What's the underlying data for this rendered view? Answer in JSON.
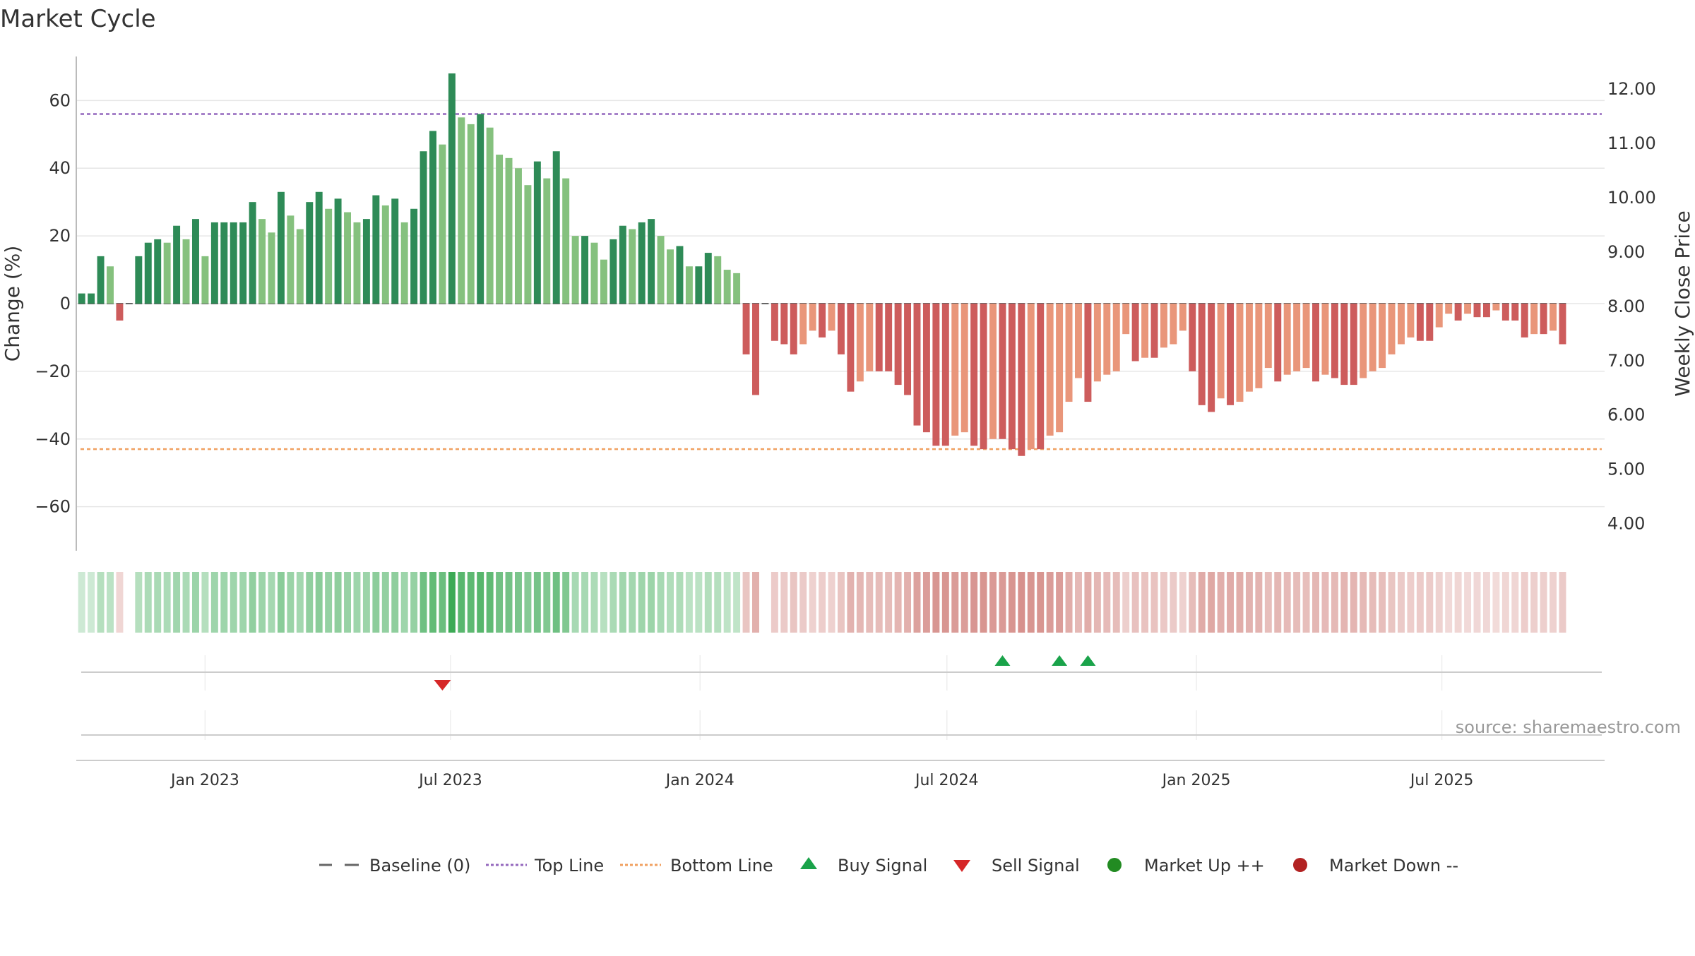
{
  "title": "Market Cycle",
  "source": "source: sharemaestro.com",
  "colors": {
    "up_strong": "#2e8b57",
    "up_light": "#85c17e",
    "down_strong": "#cd5c5c",
    "down_light": "#e9967a",
    "top_line": "#9467bd",
    "bottom_line": "#f0a060",
    "baseline": "#666666",
    "buy": "#1aa34a",
    "sell": "#d62728",
    "market_up": "#228b22",
    "market_down": "#b22222",
    "grid": "#e6e6e6",
    "axis": "#bbbbbb"
  },
  "legend": [
    {
      "key": "baseline",
      "label": "Baseline (0)",
      "icon": "dash-line-icon"
    },
    {
      "key": "top",
      "label": "Top Line",
      "icon": "dotted-line-icon"
    },
    {
      "key": "bottom",
      "label": "Bottom Line",
      "icon": "dotted-line-icon"
    },
    {
      "key": "buy",
      "label": "Buy Signal",
      "icon": "triangle-up-icon"
    },
    {
      "key": "sell",
      "label": "Sell Signal",
      "icon": "triangle-down-icon"
    },
    {
      "key": "mup",
      "label": "Market Up ++",
      "icon": "circle-icon"
    },
    {
      "key": "mdown",
      "label": "Market Down --",
      "icon": "circle-icon"
    }
  ],
  "chart_data": {
    "type": "bar",
    "title": "Market Cycle",
    "ylabel": "Change (%)",
    "y2label": "Weekly Close Price",
    "ylim": [
      -73,
      73
    ],
    "y2lim": [
      3.5,
      12.6
    ],
    "yticks": [
      -60,
      -40,
      -20,
      0,
      20,
      40,
      60
    ],
    "ytick_labels": [
      "−60",
      "−40",
      "−20",
      "0",
      "20",
      "40",
      "60"
    ],
    "y2ticks": [
      4,
      5,
      6,
      7,
      8,
      9,
      10,
      11,
      12
    ],
    "y2tick_labels": [
      "4.00",
      "5.00",
      "6.00",
      "7.00",
      "8.00",
      "9.00",
      "10.00",
      "11.00",
      "12.00"
    ],
    "xlim": [
      "2022-09-28",
      "2025-10-29"
    ],
    "xticks": [
      "2023-01-01",
      "2023-07-01",
      "2024-01-01",
      "2024-07-01",
      "2025-01-01",
      "2025-07-01"
    ],
    "xtick_labels": [
      "Jan 2023",
      "Jul 2023",
      "Jan 2024",
      "Jul 2024",
      "Jan 2025",
      "Jul 2025"
    ],
    "grid": true,
    "legend_position": "bottom",
    "reference_lines": {
      "baseline": 0,
      "top": 56,
      "bottom": -43
    },
    "start_date": "2022-10-02",
    "week_step_days": 7,
    "values": [
      3,
      3,
      14,
      11,
      -5,
      0,
      14,
      18,
      19,
      18,
      23,
      19,
      25,
      14,
      24,
      24,
      24,
      24,
      30,
      25,
      21,
      33,
      26,
      22,
      30,
      33,
      28,
      31,
      27,
      24,
      25,
      32,
      29,
      31,
      24,
      28,
      45,
      51,
      47,
      68,
      55,
      53,
      56,
      52,
      44,
      43,
      40,
      35,
      42,
      37,
      45,
      37,
      20,
      20,
      18,
      13,
      19,
      23,
      22,
      24,
      25,
      20,
      16,
      17,
      11,
      11,
      15,
      14,
      10,
      9,
      -15,
      -27,
      0,
      -11,
      -12,
      -15,
      -12,
      -8,
      -10,
      -8,
      -15,
      -26,
      -23,
      -20,
      -20,
      -20,
      -24,
      -27,
      -36,
      -38,
      -42,
      -42,
      -39,
      -38,
      -42,
      -43,
      -40,
      -40,
      -43,
      -45,
      -43,
      -43,
      -39,
      -38,
      -29,
      -22,
      -29,
      -23,
      -21,
      -20,
      -9,
      -17,
      -16,
      -16,
      -13,
      -12,
      -8,
      -20,
      -30,
      -32,
      -28,
      -30,
      -29,
      -26,
      -25,
      -19,
      -23,
      -21,
      -20,
      -19,
      -23,
      -21,
      -22,
      -24,
      -24,
      -22,
      -20,
      -19,
      -15,
      -12,
      -10,
      -11,
      -11,
      -7,
      -3,
      -5,
      -3,
      -4,
      -4,
      -2,
      -5,
      -5,
      -10,
      -9,
      -9,
      -8,
      -12
    ],
    "signals": [
      {
        "type": "sell",
        "date": "2023-06-25"
      },
      {
        "type": "buy",
        "date": "2024-08-11"
      },
      {
        "type": "buy",
        "date": "2024-09-22"
      },
      {
        "type": "buy",
        "date": "2024-10-13"
      }
    ]
  }
}
